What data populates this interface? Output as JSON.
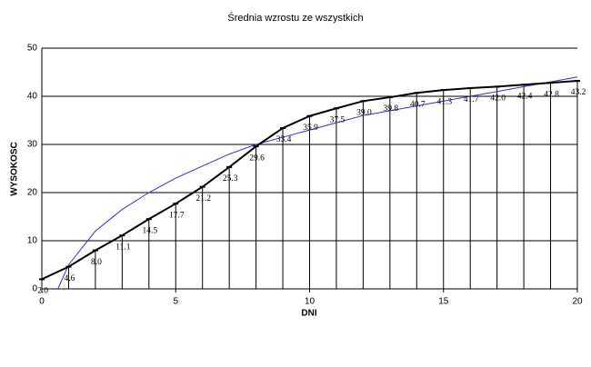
{
  "chart_data": {
    "type": "line",
    "title": "Średnia wzrostu ze wszystkich",
    "x_label": "DNI",
    "y_label": "WYSOKOSC",
    "x": [
      0,
      1,
      2,
      3,
      4,
      5,
      6,
      7,
      8,
      9,
      10,
      11,
      12,
      13,
      14,
      15,
      16,
      17,
      18,
      19,
      20
    ],
    "series": [
      {
        "color": "#000000",
        "values": [
          2.0,
          4.6,
          8.0,
          11.1,
          14.5,
          17.7,
          21.2,
          25.3,
          29.6,
          33.4,
          35.9,
          37.5,
          39.0,
          39.8,
          40.7,
          41.3,
          41.7,
          42.0,
          42.4,
          42.8,
          43.2
        ],
        "value_labels": [
          "2.0",
          "4.6",
          "8.0",
          "11.1",
          "14.5",
          "17.7",
          "21.2",
          "25.3",
          "29.6",
          "33.4",
          "35.9",
          "37.5",
          "39.0",
          "39.8",
          "40.7",
          "41.3",
          "41.7",
          "42.0",
          "42.4",
          "42.8",
          "43.2"
        ]
      }
    ],
    "trendline": {
      "color": "#3333cc",
      "x": [
        0.6,
        1,
        2,
        3,
        4,
        5,
        6,
        7,
        8,
        9,
        10,
        11,
        12,
        13,
        14,
        15,
        16,
        17,
        18,
        19,
        20
      ],
      "values": [
        0,
        5,
        12,
        16.5,
        20,
        23,
        25.5,
        28,
        30,
        31.5,
        33,
        34.5,
        36,
        37,
        38,
        39,
        40,
        41,
        42,
        43,
        44
      ]
    },
    "xlim": [
      0,
      20
    ],
    "xticks": [
      0,
      5,
      10,
      15,
      20
    ],
    "ylim": [
      0,
      50
    ],
    "yticks": [
      0,
      10,
      20,
      30,
      40,
      50
    ],
    "grid": true,
    "drop_lines": true
  }
}
